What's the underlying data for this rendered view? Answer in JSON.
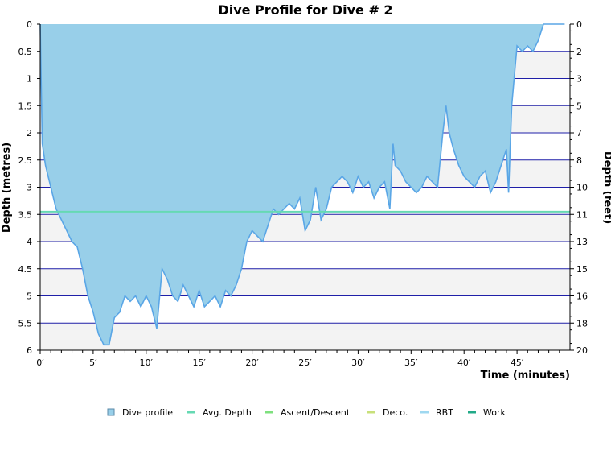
{
  "chart_data": {
    "type": "area",
    "title": "Dive Profile for Dive # 2",
    "xlabel": "Time (minutes)",
    "ylabel_left": "Depth (metres)",
    "ylabel_right": "Depth (feet)",
    "x_unit_suffix": "′",
    "xlim": [
      0,
      50
    ],
    "ylim_left": [
      0,
      6
    ],
    "left_axis_inverted": true,
    "x_ticks": [
      0,
      5,
      10,
      15,
      20,
      25,
      30,
      35,
      40,
      45
    ],
    "y_ticks_left": [
      "0",
      "0.5",
      "1",
      "1.5",
      "2",
      "2.5",
      "3",
      "3.5",
      "4",
      "4.5",
      "5",
      "5.5",
      "6"
    ],
    "y_ticks_right": [
      "0",
      "2",
      "3",
      "5",
      "7",
      "8",
      "10",
      "11",
      "13",
      "15",
      "16",
      "18",
      "20"
    ],
    "grid": true,
    "colors": {
      "profile_fill": "#98cfe9",
      "profile_line": "#5aa6e6",
      "avg_depth": "#66d9b3",
      "ascent_descent": "#7ee07e",
      "deco": "#c8e07a",
      "rbt": "#9fd8f0",
      "work": "#22aa88",
      "grid_line": "#1f1fa8",
      "band": "#f3f3f3"
    },
    "avg_depth": 3.45,
    "series": [
      {
        "name": "Dive profile",
        "x": [
          0,
          0.2,
          0.5,
          1,
          1.5,
          2,
          2.5,
          3,
          3.5,
          4,
          4.5,
          5,
          5.5,
          6,
          6.5,
          7,
          7.5,
          8,
          8.5,
          9,
          9.5,
          10,
          10.5,
          11,
          11.5,
          12,
          12.5,
          13,
          13.5,
          14,
          14.5,
          15,
          15.5,
          16,
          16.5,
          17,
          17.5,
          18,
          18.5,
          19,
          19.5,
          20,
          20.5,
          21,
          21.5,
          22,
          22.5,
          23,
          23.5,
          24,
          24.5,
          25,
          25.5,
          26,
          26.5,
          27,
          27.5,
          28,
          28.5,
          29,
          29.5,
          30,
          30.5,
          31,
          31.5,
          32,
          32.5,
          33,
          33.3,
          33.5,
          34,
          34.5,
          35,
          35.5,
          36,
          36.5,
          37,
          37.5,
          38,
          38.3,
          38.6,
          39,
          39.5,
          40,
          40.5,
          41,
          41.5,
          42,
          42.5,
          43,
          43.5,
          44,
          44.2,
          44.5,
          45,
          45.5,
          46,
          46.5,
          47,
          47.5,
          49.5
        ],
        "y": [
          0,
          2.2,
          2.6,
          3.0,
          3.4,
          3.6,
          3.8,
          4.0,
          4.1,
          4.5,
          5.0,
          5.3,
          5.7,
          5.9,
          5.9,
          5.4,
          5.3,
          5.0,
          5.1,
          5.0,
          5.2,
          5.0,
          5.2,
          5.6,
          4.5,
          4.7,
          5.0,
          5.1,
          4.8,
          5.0,
          5.2,
          4.9,
          5.2,
          5.1,
          5.0,
          5.2,
          4.9,
          5.0,
          4.8,
          4.5,
          4.0,
          3.8,
          3.9,
          4.0,
          3.7,
          3.4,
          3.5,
          3.4,
          3.3,
          3.4,
          3.2,
          3.8,
          3.6,
          3.0,
          3.6,
          3.4,
          3.0,
          2.9,
          2.8,
          2.9,
          3.1,
          2.8,
          3.0,
          2.9,
          3.2,
          3.0,
          2.9,
          3.4,
          2.2,
          2.6,
          2.7,
          2.9,
          3.0,
          3.1,
          3.0,
          2.8,
          2.9,
          3.0,
          2.0,
          1.5,
          2.0,
          2.3,
          2.6,
          2.8,
          2.9,
          3.0,
          2.8,
          2.7,
          3.1,
          2.9,
          2.6,
          2.3,
          3.1,
          1.5,
          0.4,
          0.5,
          0.4,
          0.5,
          0.3,
          0,
          0
        ]
      },
      {
        "name": "Avg. Depth"
      },
      {
        "name": "Ascent/Descent"
      },
      {
        "name": "Deco."
      },
      {
        "name": "RBT"
      },
      {
        "name": "Work"
      }
    ],
    "legend_position": "bottom"
  }
}
